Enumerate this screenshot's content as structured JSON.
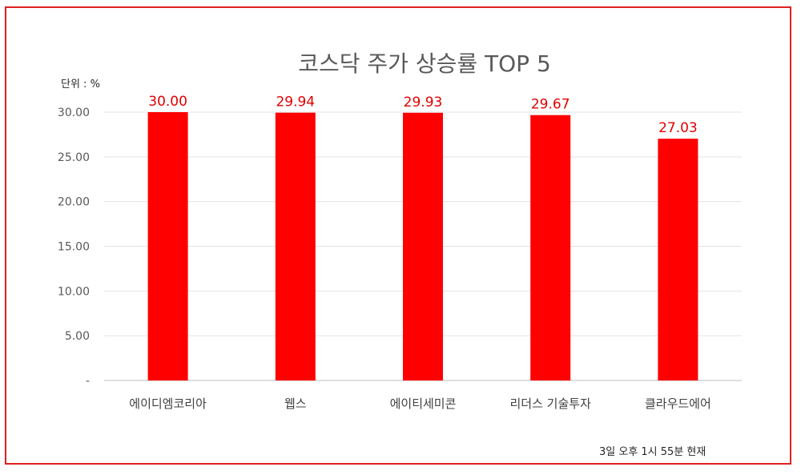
{
  "chart_data": {
    "type": "bar",
    "title": "코스닥 주가 상승률 TOP 5",
    "unit_label": "단위 : %",
    "footnote": "3일  오후 1시 55분 현재",
    "categories": [
      "에이디엠코리아",
      "웹스",
      "에이티세미콘",
      "리더스 기술투자",
      "클라우드에어"
    ],
    "values": [
      30.0,
      29.94,
      29.93,
      29.67,
      27.03
    ],
    "data_labels": [
      "30.00",
      "29.94",
      "29.93",
      "29.67",
      "27.03"
    ],
    "y_ticks": [
      0,
      5,
      10,
      15,
      20,
      25,
      30
    ],
    "y_tick_labels": [
      "-",
      "5.00",
      "10.00",
      "15.00",
      "20.00",
      "25.00",
      "30.00"
    ],
    "ylim": [
      0,
      30
    ],
    "grid": true,
    "bar_color": "#ff0000",
    "label_color": "#e00000"
  }
}
